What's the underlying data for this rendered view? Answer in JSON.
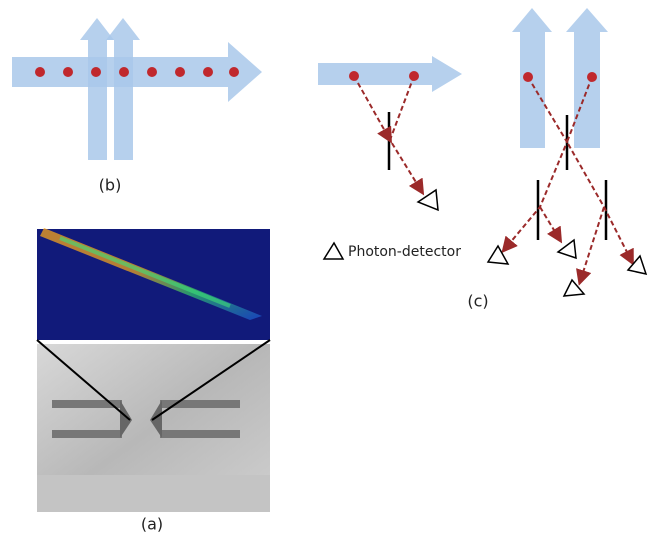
{
  "labels": {
    "b": "(b)",
    "detector": "Photon-detector",
    "c": "(c)",
    "a": "(a)"
  }
}
